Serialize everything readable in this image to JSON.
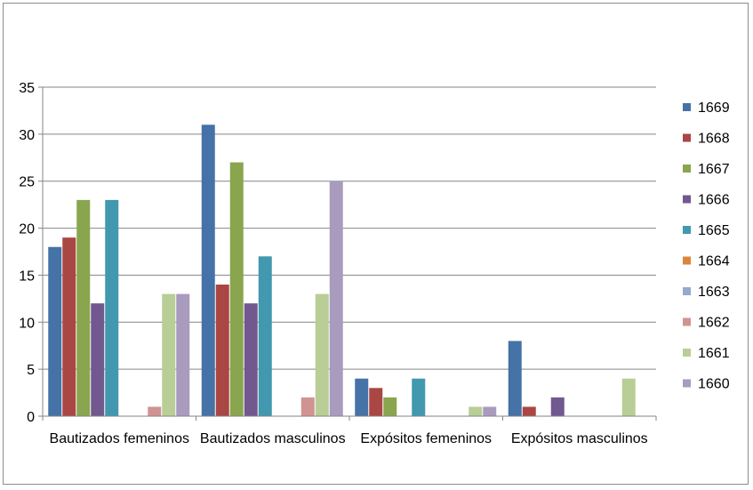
{
  "chart_data": {
    "type": "bar",
    "title": "",
    "xlabel": "",
    "ylabel": "",
    "ylim": [
      0,
      35
    ],
    "yticks": [
      0,
      5,
      10,
      15,
      20,
      25,
      30,
      35
    ],
    "grid": true,
    "legend_position": "right",
    "categories": [
      "Bautizados femeninos",
      "Bautizados masculinos",
      "Expósitos femeninos",
      "Expósitos masculinos"
    ],
    "series": [
      {
        "name": "1669",
        "color": "#4572A7",
        "values": [
          18,
          31,
          4,
          8
        ]
      },
      {
        "name": "1668",
        "color": "#AA4643",
        "values": [
          19,
          14,
          3,
          1
        ]
      },
      {
        "name": "1667",
        "color": "#89A54E",
        "values": [
          23,
          27,
          2,
          0
        ]
      },
      {
        "name": "1666",
        "color": "#71588F",
        "values": [
          12,
          12,
          0,
          2
        ]
      },
      {
        "name": "1665",
        "color": "#4198AF",
        "values": [
          23,
          17,
          4,
          0
        ]
      },
      {
        "name": "1664",
        "color": "#DB843D",
        "values": [
          0,
          0,
          0,
          0
        ]
      },
      {
        "name": "1663",
        "color": "#93A9CF",
        "values": [
          0,
          0,
          0,
          0
        ]
      },
      {
        "name": "1662",
        "color": "#D19392",
        "values": [
          1,
          2,
          0,
          0
        ]
      },
      {
        "name": "1661",
        "color": "#B9CD96",
        "values": [
          13,
          13,
          1,
          4
        ]
      },
      {
        "name": "1660",
        "color": "#A99BBD",
        "values": [
          13,
          25,
          1,
          0
        ]
      }
    ]
  }
}
